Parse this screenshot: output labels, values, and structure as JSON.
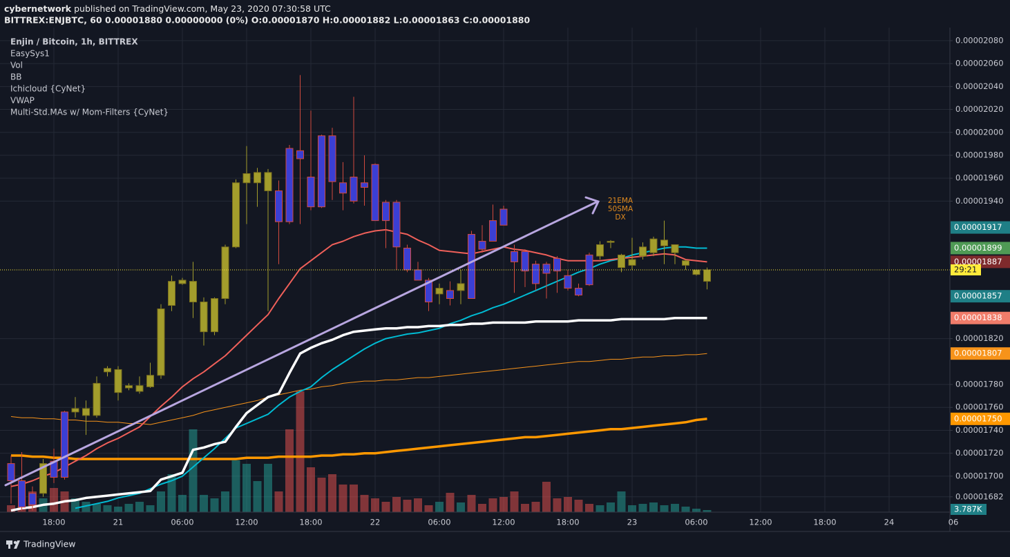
{
  "header": {
    "publisher": "cybernetwork",
    "published": "published on TradingView.com, May 23, 2020 07:30:58 UTC",
    "symbol_line": "BITTREX:ENJBTC, 60 0.00001880 0.00000000 (0%) O:0.00001870 H:0.00001882 L:0.00001863 C:0.00001880"
  },
  "footer": {
    "brand": "TradingView"
  },
  "chart_data": {
    "type": "candlestick",
    "legend": [
      "Enjin / Bitcoin, 1h, BITTREX",
      "EasySys1",
      "Vol",
      "BB",
      "Ichicloud {CyNet}",
      "VWAP",
      "Multi-Std.MAs w/ Mom-Filters {CyNet}"
    ],
    "annotation": [
      "21EMA",
      "50SMA",
      "DX"
    ],
    "categories": [
      null,
      null,
      null,
      null,
      "18:00",
      null,
      null,
      null,
      null,
      null,
      "21",
      null,
      null,
      null,
      null,
      null,
      "06:00",
      null,
      null,
      null,
      null,
      null,
      "12:00",
      null,
      null,
      null,
      null,
      null,
      "18:00",
      null,
      null,
      null,
      null,
      null,
      "22",
      null,
      null,
      null,
      null,
      null,
      "06:00",
      null,
      null,
      null,
      null,
      null,
      "12:00",
      null,
      null,
      null,
      null,
      null,
      "18:00",
      null,
      null,
      null,
      null,
      null,
      "23",
      null,
      null,
      null,
      null,
      null,
      "06:00",
      null,
      null,
      null,
      null,
      null,
      "12:00",
      null,
      null,
      null,
      null,
      null,
      "18:00",
      null,
      null,
      null,
      null,
      null,
      "24",
      null,
      null,
      null,
      null,
      null,
      "06"
    ],
    "open": [
      1.711e-05,
      1.696e-05,
      1.685e-05,
      1.685e-05,
      1.713e-05,
      1.756e-05,
      1.756e-05,
      1.753e-05,
      1.753e-05,
      1.791e-05,
      1.773e-05,
      1.777e-05,
      1.774e-05,
      1.778e-05,
      1.788e-05,
      1.849e-05,
      1.868e-05,
      1.852e-05,
      1.826e-05,
      1.826e-05,
      1.855e-05,
      1.9e-05,
      1.956e-05,
      1.956e-05,
      1.949e-05,
      1.949e-05,
      1.986e-05,
      1.984e-05,
      1.961e-05,
      1.997e-05,
      1.997e-05,
      1.956e-05,
      1.961e-05,
      1.956e-05,
      1.972e-05,
      1.939e-05,
      1.939e-05,
      1.899e-05,
      1.88e-05,
      1.871e-05,
      1.859e-05,
      1.862e-05,
      1.862e-05,
      1.911e-05,
      1.905e-05,
      1.923e-05,
      1.933e-05,
      1.896e-05,
      1.896e-05,
      1.885e-05,
      1.885e-05,
      1.89e-05,
      1.875e-05,
      1.864e-05,
      1.893e-05,
      1.892e-05,
      1.904e-05,
      1.882e-05,
      1.884e-05,
      1.892e-05,
      1.895e-05,
      1.901e-05,
      1.895e-05,
      1.884e-05,
      1.876e-05,
      1.87e-05,
      null,
      null,
      null,
      null,
      null,
      null,
      null,
      null,
      null,
      null,
      null,
      null,
      null,
      null,
      null,
      null,
      null,
      null,
      null,
      null,
      null,
      null,
      null
    ],
    "high": [
      1.718e-05,
      1.721e-05,
      1.691e-05,
      1.715e-05,
      1.724e-05,
      1.757e-05,
      1.769e-05,
      1.766e-05,
      1.787e-05,
      1.796e-05,
      1.796e-05,
      1.781e-05,
      1.787e-05,
      1.799e-05,
      1.85e-05,
      1.875e-05,
      1.873e-05,
      1.887e-05,
      1.856e-05,
      1.856e-05,
      1.902e-05,
      1.959e-05,
      1.988e-05,
      1.969e-05,
      1.968e-05,
      1.958e-05,
      1.989e-05,
      2.05e-05,
      2.019e-05,
      1.998e-05,
      2.004e-05,
      1.974e-05,
      2.031e-05,
      1.98e-05,
      1.973e-05,
      1.941e-05,
      1.941e-05,
      1.902e-05,
      1.887e-05,
      1.873e-05,
      1.868e-05,
      1.87e-05,
      1.88e-05,
      1.914e-05,
      1.919e-05,
      1.937e-05,
      1.936e-05,
      1.902e-05,
      1.898e-05,
      1.888e-05,
      1.887e-05,
      1.892e-05,
      1.88e-05,
      1.868e-05,
      1.895e-05,
      1.905e-05,
      1.906e-05,
      1.894e-05,
      1.908e-05,
      1.904e-05,
      1.909e-05,
      1.923e-05,
      1.902e-05,
      1.889e-05,
      1.88e-05,
      1.882e-05,
      null,
      null,
      null,
      null,
      null,
      null,
      null,
      null,
      null,
      null,
      null,
      null,
      null,
      null,
      null,
      null,
      null,
      null,
      null,
      null,
      null,
      null,
      null
    ],
    "low": [
      1.676e-05,
      1.67e-05,
      1.67e-05,
      1.682e-05,
      1.694e-05,
      1.697e-05,
      1.751e-05,
      1.736e-05,
      1.751e-05,
      1.787e-05,
      1.766e-05,
      1.775e-05,
      1.772e-05,
      1.777e-05,
      1.785e-05,
      1.844e-05,
      1.867e-05,
      1.838e-05,
      1.814e-05,
      1.823e-05,
      1.85e-05,
      1.899e-05,
      1.92e-05,
      1.935e-05,
      1.844e-05,
      1.885e-05,
      1.92e-05,
      1.92e-05,
      1.932e-05,
      1.934e-05,
      1.941e-05,
      1.932e-05,
      1.938e-05,
      1.936e-05,
      1.923e-05,
      1.899e-05,
      1.88e-05,
      1.878e-05,
      1.871e-05,
      1.844e-05,
      1.85e-05,
      1.849e-05,
      1.85e-05,
      1.855e-05,
      1.895e-05,
      1.905e-05,
      1.919e-05,
      1.86e-05,
      1.865e-05,
      1.862e-05,
      1.855e-05,
      1.86e-05,
      1.862e-05,
      1.857e-05,
      1.866e-05,
      1.889e-05,
      1.899e-05,
      1.878e-05,
      1.88e-05,
      1.889e-05,
      1.892e-05,
      1.885e-05,
      1.885e-05,
      1.88e-05,
      1.875e-05,
      1.863e-05,
      null,
      null,
      null,
      null,
      null,
      null,
      null,
      null,
      null,
      null,
      null,
      null,
      null,
      null,
      null,
      null,
      null,
      null,
      null,
      null,
      null,
      null,
      null
    ],
    "close": [
      1.696e-05,
      1.673e-05,
      1.675e-05,
      1.711e-05,
      1.699e-05,
      1.699e-05,
      1.759e-05,
      1.759e-05,
      1.781e-05,
      1.794e-05,
      1.793e-05,
      1.779e-05,
      1.779e-05,
      1.788e-05,
      1.846e-05,
      1.87e-05,
      1.871e-05,
      1.87e-05,
      1.852e-05,
      1.855e-05,
      1.9e-05,
      1.956e-05,
      1.964e-05,
      1.965e-05,
      1.965e-05,
      1.922e-05,
      1.922e-05,
      1.977e-05,
      1.935e-05,
      1.935e-05,
      1.957e-05,
      1.947e-05,
      1.94e-05,
      1.952e-05,
      1.923e-05,
      1.923e-05,
      1.9e-05,
      1.88e-05,
      1.871e-05,
      1.852e-05,
      1.864e-05,
      1.855e-05,
      1.868e-05,
      1.855e-05,
      1.898e-05,
      1.905e-05,
      1.919e-05,
      1.887e-05,
      1.879e-05,
      1.868e-05,
      1.877e-05,
      1.879e-05,
      1.864e-05,
      1.858e-05,
      1.867e-05,
      1.902e-05,
      1.905e-05,
      1.893e-05,
      1.889e-05,
      1.9e-05,
      1.907e-05,
      1.906e-05,
      1.902e-05,
      1.888e-05,
      1.88e-05,
      1.88e-05,
      null,
      null,
      null,
      null,
      null,
      null,
      null,
      null,
      null,
      null,
      null,
      null,
      null,
      null,
      null,
      null,
      null,
      null,
      null,
      null,
      null,
      null,
      null
    ],
    "up_color": "#a39d2c",
    "down_color": "#3b3fd4",
    "down_border_color": "#d24a3e",
    "volume": [
      12620,
      10096,
      37860,
      25240,
      44170,
      37860,
      25240,
      18930,
      15144,
      12620,
      10096,
      15144,
      18930,
      12620,
      37860,
      69410,
      31550,
      151440,
      31550,
      25240,
      37860,
      94650,
      88340,
      56790,
      88340,
      37860,
      151440,
      220850,
      82030,
      63100,
      69410,
      50480,
      50480,
      31550,
      25240,
      18930,
      27764,
      22716,
      25240,
      12620,
      18930,
      35336,
      17668,
      31550,
      15144,
      25240,
      27764,
      37860,
      15144,
      18930,
      55528,
      25240,
      27764,
      22716,
      15144,
      12620,
      17668,
      37860,
      12620,
      15144,
      17668,
      12620,
      15144,
      10096,
      6310,
      3787,
      null,
      null,
      null,
      null,
      null,
      null,
      null,
      null,
      null,
      null,
      null,
      null,
      null,
      null,
      null,
      null,
      null,
      null,
      null,
      null,
      null,
      null,
      null
    ],
    "volume_lim": [
      0,
      886000
    ],
    "volume_up_color": "#26a69a",
    "volume_down_color": "#ef5350",
    "volume_label": "3.787K",
    "lines": [
      {
        "color": "#ff9800",
        "width": 3.5,
        "values": [
          1.718e-05,
          1.718e-05,
          1.717e-05,
          1.717e-05,
          1.716e-05,
          1.716e-05,
          1.715e-05,
          1.715e-05,
          1.715e-05,
          1.715e-05,
          1.715e-05,
          1.715e-05,
          1.715e-05,
          1.715e-05,
          1.715e-05,
          1.715e-05,
          1.715e-05,
          1.715e-05,
          1.715e-05,
          1.715e-05,
          1.715e-05,
          1.715e-05,
          1.716e-05,
          1.716e-05,
          1.716e-05,
          1.717e-05,
          1.717e-05,
          1.717e-05,
          1.717e-05,
          1.718e-05,
          1.718e-05,
          1.719e-05,
          1.719e-05,
          1.72e-05,
          1.72e-05,
          1.721e-05,
          1.722e-05,
          1.723e-05,
          1.724e-05,
          1.725e-05,
          1.726e-05,
          1.727e-05,
          1.728e-05,
          1.729e-05,
          1.73e-05,
          1.731e-05,
          1.732e-05,
          1.733e-05,
          1.734e-05,
          1.734e-05,
          1.735e-05,
          1.736e-05,
          1.737e-05,
          1.738e-05,
          1.739e-05,
          1.74e-05,
          1.741e-05,
          1.741e-05,
          1.742e-05,
          1.743e-05,
          1.744e-05,
          1.745e-05,
          1.746e-05,
          1.747e-05,
          1.749e-05,
          1.75e-05,
          null,
          null,
          null,
          null,
          null,
          null,
          null,
          null,
          null,
          null,
          null,
          null,
          null,
          null,
          null,
          null,
          null,
          null,
          null,
          null,
          null,
          null,
          null
        ]
      },
      {
        "color": "#f7931a",
        "width": 1,
        "values": [
          1.752e-05,
          1.751e-05,
          1.751e-05,
          1.75e-05,
          1.75e-05,
          1.749e-05,
          1.749e-05,
          1.748e-05,
          1.748e-05,
          1.747e-05,
          1.747e-05,
          1.746e-05,
          1.746e-05,
          1.745e-05,
          1.747e-05,
          1.749e-05,
          1.751e-05,
          1.753e-05,
          1.756e-05,
          1.758e-05,
          1.76e-05,
          1.762e-05,
          1.764e-05,
          1.766e-05,
          1.769e-05,
          1.771e-05,
          1.773e-05,
          1.775e-05,
          1.776e-05,
          1.778e-05,
          1.779e-05,
          1.781e-05,
          1.782e-05,
          1.783e-05,
          1.783e-05,
          1.784e-05,
          1.784e-05,
          1.785e-05,
          1.786e-05,
          1.786e-05,
          1.787e-05,
          1.788e-05,
          1.789e-05,
          1.79e-05,
          1.791e-05,
          1.792e-05,
          1.793e-05,
          1.794e-05,
          1.795e-05,
          1.796e-05,
          1.797e-05,
          1.798e-05,
          1.799e-05,
          1.8e-05,
          1.8e-05,
          1.801e-05,
          1.802e-05,
          1.802e-05,
          1.803e-05,
          1.804e-05,
          1.804e-05,
          1.805e-05,
          1.805e-05,
          1.806e-05,
          1.806e-05,
          1.807e-05,
          null,
          null,
          null,
          null,
          null,
          null,
          null,
          null,
          null,
          null,
          null,
          null,
          null,
          null,
          null,
          null,
          null,
          null,
          null,
          null,
          null,
          null,
          null
        ]
      },
      {
        "color": "#00bcd4",
        "width": 2,
        "values": [
          null,
          null,
          null,
          null,
          null,
          null,
          1.672e-05,
          1.674e-05,
          1.676e-05,
          1.678e-05,
          1.681e-05,
          1.683e-05,
          1.685e-05,
          1.689e-05,
          1.693e-05,
          1.696e-05,
          1.7e-05,
          1.708e-05,
          1.716e-05,
          1.724e-05,
          1.733e-05,
          1.742e-05,
          1.746e-05,
          1.75e-05,
          1.754e-05,
          1.762e-05,
          1.769e-05,
          1.774e-05,
          1.778e-05,
          1.786e-05,
          1.793e-05,
          1.799e-05,
          1.805e-05,
          1.811e-05,
          1.816e-05,
          1.82e-05,
          1.822e-05,
          1.824e-05,
          1.825e-05,
          1.827e-05,
          1.829e-05,
          1.833e-05,
          1.836e-05,
          1.84e-05,
          1.843e-05,
          1.847e-05,
          1.85e-05,
          1.854e-05,
          1.858e-05,
          1.862e-05,
          1.866e-05,
          1.87e-05,
          1.874e-05,
          1.878e-05,
          1.881e-05,
          1.885e-05,
          1.888e-05,
          1.89e-05,
          1.893e-05,
          1.895e-05,
          1.897e-05,
          1.899e-05,
          1.9e-05,
          1.9e-05,
          1.899e-05,
          1.899e-05,
          null,
          null,
          null,
          null,
          null,
          null,
          null,
          null,
          null,
          null,
          null,
          null,
          null,
          null,
          null,
          null,
          null,
          null,
          null,
          null,
          null,
          null,
          null
        ]
      },
      {
        "color": "#f0605a",
        "width": 2,
        "values": [
          1.691e-05,
          1.693e-05,
          1.696e-05,
          1.7e-05,
          1.703e-05,
          1.708e-05,
          1.713e-05,
          1.718e-05,
          1.724e-05,
          1.729e-05,
          1.733e-05,
          1.738e-05,
          1.743e-05,
          1.752e-05,
          1.761e-05,
          1.769e-05,
          1.778e-05,
          1.785e-05,
          1.791e-05,
          1.798e-05,
          1.805e-05,
          1.814e-05,
          1.823e-05,
          1.832e-05,
          1.841e-05,
          1.855e-05,
          1.868e-05,
          1.881e-05,
          1.888e-05,
          1.895e-05,
          1.902e-05,
          1.905e-05,
          1.909e-05,
          1.912e-05,
          1.914e-05,
          1.915e-05,
          1.913e-05,
          1.911e-05,
          1.906e-05,
          1.902e-05,
          1.897e-05,
          1.896e-05,
          1.895e-05,
          1.894e-05,
          1.896e-05,
          1.898e-05,
          1.9e-05,
          1.898e-05,
          1.897e-05,
          1.895e-05,
          1.893e-05,
          1.89e-05,
          1.888e-05,
          1.888e-05,
          1.888e-05,
          1.888e-05,
          1.889e-05,
          1.89e-05,
          1.891e-05,
          1.892e-05,
          1.893e-05,
          1.894e-05,
          1.893e-05,
          1.889e-05,
          1.888e-05,
          1.887e-05,
          null,
          null,
          null,
          null,
          null,
          null,
          null,
          null,
          null,
          null,
          null,
          null,
          null,
          null,
          null,
          null,
          null,
          null,
          null,
          null,
          null,
          null,
          null
        ]
      },
      {
        "color": "#ffffff",
        "width": 3.5,
        "values": [
          1.67e-05,
          1.672e-05,
          1.673e-05,
          1.675e-05,
          1.676e-05,
          1.678e-05,
          1.679e-05,
          1.681e-05,
          1.682e-05,
          1.683e-05,
          1.684e-05,
          1.685e-05,
          1.686e-05,
          1.687e-05,
          1.697e-05,
          1.7e-05,
          1.703e-05,
          1.723e-05,
          1.725e-05,
          1.728e-05,
          1.73e-05,
          1.743e-05,
          1.755e-05,
          1.762e-05,
          1.769e-05,
          1.772e-05,
          1.79e-05,
          1.807e-05,
          1.812e-05,
          1.816e-05,
          1.819e-05,
          1.823e-05,
          1.826e-05,
          1.827e-05,
          1.828e-05,
          1.829e-05,
          1.829e-05,
          1.83e-05,
          1.83e-05,
          1.831e-05,
          1.831e-05,
          1.832e-05,
          1.832e-05,
          1.833e-05,
          1.833e-05,
          1.834e-05,
          1.834e-05,
          1.834e-05,
          1.834e-05,
          1.835e-05,
          1.835e-05,
          1.835e-05,
          1.835e-05,
          1.836e-05,
          1.836e-05,
          1.836e-05,
          1.836e-05,
          1.837e-05,
          1.837e-05,
          1.837e-05,
          1.837e-05,
          1.837e-05,
          1.838e-05,
          1.838e-05,
          1.838e-05,
          1.838e-05,
          null,
          null,
          null,
          null,
          null,
          null,
          null,
          null,
          null,
          null,
          null,
          null,
          null,
          null,
          null,
          null,
          null,
          null,
          null,
          null,
          null,
          null,
          null
        ]
      }
    ],
    "ylim": [
      1.6686e-05,
      2.0914e-05
    ],
    "yticks": [
      {
        "value": 2.08e-05,
        "label": "0.00002080"
      },
      {
        "value": 2.06e-05,
        "label": "0.00002060"
      },
      {
        "value": 2.04e-05,
        "label": "0.00002040"
      },
      {
        "value": 2.02e-05,
        "label": "0.00002020"
      },
      {
        "value": 2e-05,
        "label": "0.00002000"
      },
      {
        "value": 1.98e-05,
        "label": "0.00001980"
      },
      {
        "value": 1.96e-05,
        "label": "0.00001960"
      },
      {
        "value": 1.94e-05,
        "label": "0.00001940"
      },
      {
        "value": 1.82e-05,
        "label": "0.00001820"
      },
      {
        "value": 1.78e-05,
        "label": "0.00001780"
      },
      {
        "value": 1.76e-05,
        "label": "0.00001760"
      },
      {
        "value": 1.74e-05,
        "label": "0.00001740"
      },
      {
        "value": 1.72e-05,
        "label": "0.00001720"
      },
      {
        "value": 1.7e-05,
        "label": "0.00001700"
      },
      {
        "value": 1.682e-05,
        "label": "0.00001682"
      }
    ],
    "price_tags": [
      {
        "value": 1.917e-05,
        "label": "0.00001917",
        "color": "#1f7f86"
      },
      {
        "value": 1.899e-05,
        "label": "0.00001899",
        "color": "#4f9a55"
      },
      {
        "value": 1.887e-05,
        "label": "0.00001887",
        "color": "#7e2a2c"
      },
      {
        "value": 1.857e-05,
        "label": "0.00001857",
        "color": "#1f7f86"
      },
      {
        "value": 1.838e-05,
        "label": "0.00001838",
        "color": "#f07c6a"
      },
      {
        "value": 1.807e-05,
        "label": "0.00001807",
        "color": "#f7931a"
      },
      {
        "value": 1.75e-05,
        "label": "0.00001750",
        "color": "#ff9800"
      }
    ],
    "countdown": "29:21",
    "countdown_color": "#ffeb3b",
    "grid": true
  }
}
